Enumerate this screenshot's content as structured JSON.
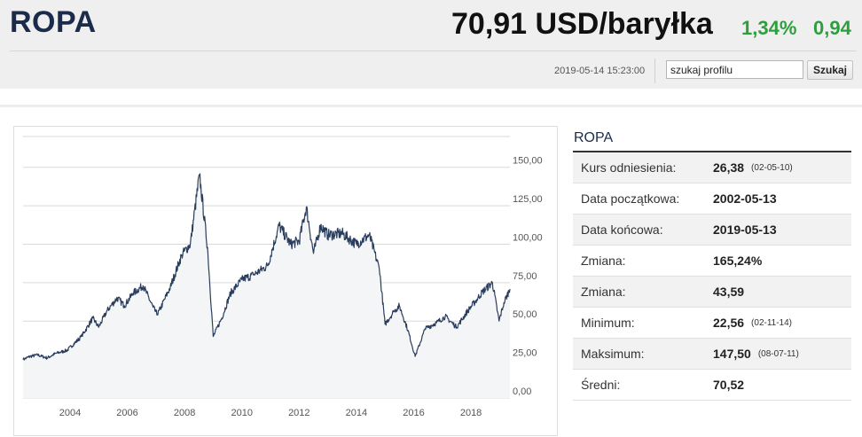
{
  "header": {
    "title": "ROPA",
    "price": "70,91 USD/baryłka",
    "change_pct": "1,34%",
    "change_abs": "0,94",
    "timestamp": "2019-05-14 15:23:00",
    "search_placeholder": "szukaj profilu",
    "search_value": "szukaj profilu",
    "search_button": "Szukaj",
    "colors": {
      "title": "#1a2b4c",
      "positive": "#2e9e3e",
      "line": "#2a3d5c",
      "fill": "#f3f5f7"
    }
  },
  "panel": {
    "title": "ROPA",
    "rows": [
      {
        "label": "Kurs odniesienia:",
        "value": "26,38",
        "note": "(02-05-10)"
      },
      {
        "label": "Data początkowa:",
        "value": "2002-05-13",
        "note": ""
      },
      {
        "label": "Data końcowa:",
        "value": "2019-05-13",
        "note": ""
      },
      {
        "label": "Zmiana:",
        "value": "165,24%",
        "note": ""
      },
      {
        "label": "Zmiana:",
        "value": "43,59",
        "note": ""
      },
      {
        "label": "Minimum:",
        "value": "22,56",
        "note": "(02-11-14)"
      },
      {
        "label": "Maksimum:",
        "value": "147,50",
        "note": "(08-07-11)"
      },
      {
        "label": "Średni:",
        "value": "70,52",
        "note": ""
      }
    ]
  },
  "chart_data": {
    "type": "area",
    "x_label": "",
    "y_label": "",
    "xlim": [
      2002.36,
      2019.36
    ],
    "ylim": [
      0,
      170
    ],
    "y_ticks": [
      0,
      25,
      50,
      75,
      100,
      125,
      150
    ],
    "y_tick_labels": [
      "0,00",
      "25,00",
      "50,00",
      "75,00",
      "100,00",
      "125,00",
      "150,00"
    ],
    "x_ticks": [
      2004,
      2006,
      2008,
      2010,
      2012,
      2014,
      2016,
      2018
    ],
    "x_tick_labels": [
      "2004",
      "2006",
      "2008",
      "2010",
      "2012",
      "2014",
      "2016",
      "2018"
    ],
    "grid": true,
    "series": [
      {
        "x": [
          2002.36,
          2002.6,
          2002.87,
          2003.2,
          2003.5,
          2003.9,
          2004.4,
          2004.8,
          2005.0,
          2005.3,
          2005.65,
          2005.9,
          2006.2,
          2006.55,
          2006.9,
          2007.05,
          2007.5,
          2007.9,
          2008.2,
          2008.52,
          2008.8,
          2009.0,
          2009.3,
          2009.6,
          2010.0,
          2010.4,
          2010.9,
          2011.3,
          2011.7,
          2012.0,
          2012.25,
          2012.5,
          2012.75,
          2013.0,
          2013.5,
          2014.0,
          2014.45,
          2014.8,
          2015.0,
          2015.3,
          2015.5,
          2015.8,
          2016.05,
          2016.4,
          2016.8,
          2017.1,
          2017.5,
          2017.9,
          2018.2,
          2018.4,
          2018.75,
          2018.98,
          2019.15,
          2019.36
        ],
        "y": [
          25,
          27,
          28,
          26,
          29,
          31,
          40,
          52,
          46,
          57,
          65,
          60,
          68,
          73,
          59,
          54,
          72,
          93,
          100,
          145,
          98,
          40,
          52,
          68,
          77,
          80,
          86,
          112,
          100,
          102,
          124,
          94,
          112,
          106,
          107,
          100,
          106,
          84,
          48,
          56,
          60,
          44,
          27,
          45,
          49,
          53,
          46,
          57,
          64,
          69,
          75,
          50,
          62,
          70.91
        ]
      }
    ]
  }
}
